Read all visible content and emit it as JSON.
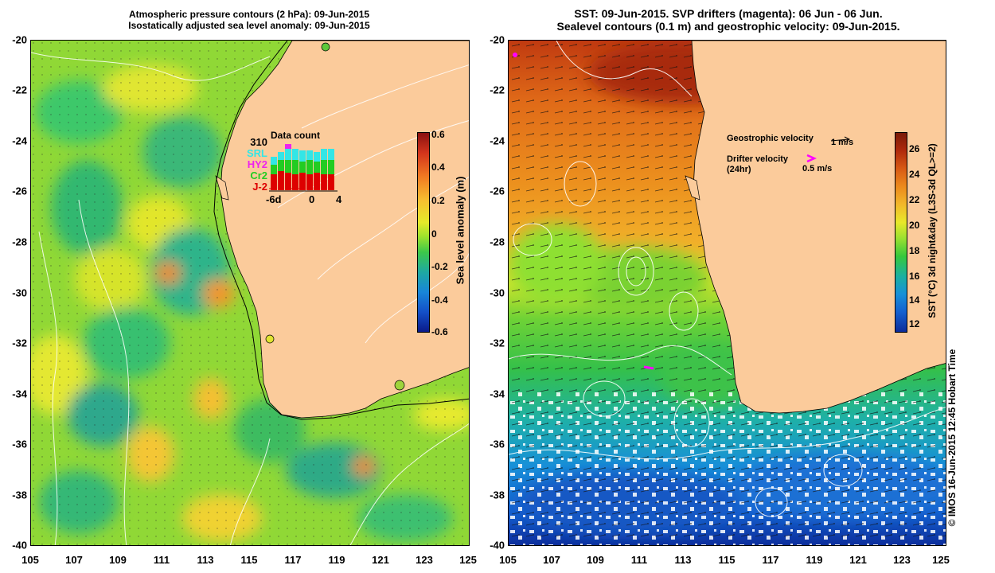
{
  "left_panel": {
    "title_line1": "Atmospheric pressure contours (2 hPa): 09-Jun-2015",
    "title_line2": "Isostatically adjusted sea level anomaly: 09-Jun-2015",
    "y_ticks": [
      "-20",
      "-22",
      "-24",
      "-26",
      "-28",
      "-30",
      "-32",
      "-34",
      "-36",
      "-38",
      "-40"
    ],
    "x_ticks": [
      "105",
      "107",
      "109",
      "111",
      "113",
      "115",
      "117",
      "119",
      "121",
      "123",
      "125"
    ],
    "data_count": {
      "title": "Data count",
      "satellites": [
        {
          "name": "310",
          "color": "#000000"
        },
        {
          "name": "SRL",
          "color": "#33e6e6"
        },
        {
          "name": "HY2",
          "color": "#ee22ee"
        },
        {
          "name": "Cr2",
          "color": "#22cc22"
        },
        {
          "name": "J-2",
          "color": "#dd0000"
        }
      ],
      "x_labels": [
        "-6d",
        "0",
        "4"
      ]
    },
    "colorbar": {
      "label": "Sea level anomaly (m)",
      "ticks": [
        "0.6",
        "0.4",
        "0.2",
        "0",
        "-0.2",
        "-0.4",
        "-0.6"
      ],
      "colors": [
        "#8a1010",
        "#d2341c",
        "#f07a22",
        "#f7c030",
        "#e5ea2a",
        "#9ee22c",
        "#3cc84a",
        "#1ea8a2",
        "#1886d8",
        "#1450c8",
        "#0a1a8a"
      ]
    }
  },
  "right_panel": {
    "title_line1": "SST: 09-Jun-2015. SVP drifters (magenta): 06 Jun - 06 Jun.",
    "title_line2": "Sealevel contours (0.1 m) and geostrophic velocity: 09-Jun-2015.",
    "y_ticks": [
      "-20",
      "-22",
      "-24",
      "-26",
      "-28",
      "-30",
      "-32",
      "-34",
      "-36",
      "-38",
      "-40"
    ],
    "x_ticks": [
      "105",
      "107",
      "109",
      "111",
      "113",
      "115",
      "117",
      "119",
      "121",
      "123",
      "125"
    ],
    "legend": {
      "geo_label": "Geostrophic velocity",
      "geo_scale": "1 m/s",
      "drifter_label": "Drifter velocity",
      "drifter_sub": "(24hr)",
      "drifter_scale": "0.5 m/s"
    },
    "colorbar": {
      "label": "SST (°C) 3d night&day (L3S-3d QL>=2)",
      "ticks": [
        "26",
        "24",
        "22",
        "20",
        "18",
        "16",
        "14",
        "12"
      ],
      "colors": [
        "#7a1a08",
        "#b02a0c",
        "#d85a14",
        "#ec8a1c",
        "#f2b82a",
        "#e8e82a",
        "#9ae030",
        "#36c83c",
        "#1ab0a0",
        "#1890d8",
        "#1460d0",
        "#0c2c9a"
      ]
    },
    "copyright": "© IMOS 16-Jun-2015 12:45 Hobart Time"
  },
  "colors": {
    "land": "#fbcb9b",
    "magenta": "#ff00ff"
  }
}
